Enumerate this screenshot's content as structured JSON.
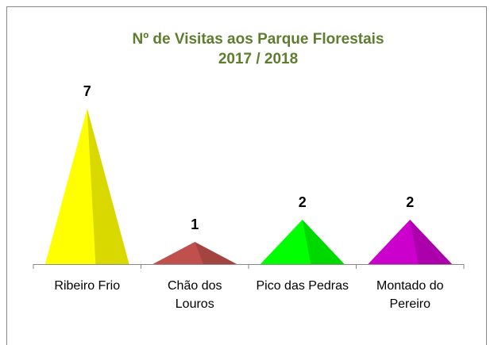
{
  "chart_data": {
    "type": "cone",
    "title": "Nº de Visitas aos Parque Florestais",
    "subtitle": "2017 / 2018",
    "categories": [
      "Ribeiro Frio",
      "Chão dos Louros",
      "Pico das Pedras",
      "Montado do Pereiro"
    ],
    "values": [
      7,
      1,
      2,
      2
    ],
    "colors": [
      "#ffff00",
      "#c0504d",
      "#00ff00",
      "#cc00cc"
    ]
  }
}
